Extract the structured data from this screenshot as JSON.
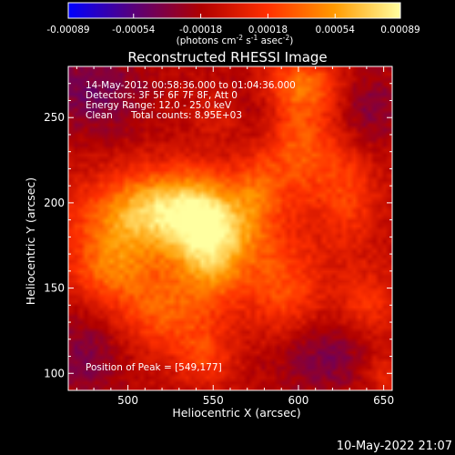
{
  "colorbar": {
    "tick_labels": [
      "-0.00089",
      "-0.00054",
      "-0.00018",
      "0.00018",
      "0.00054",
      "0.00089"
    ],
    "tick_values": [
      -0.00089,
      -0.00054,
      -0.00018,
      0.00018,
      0.00054,
      0.00089
    ],
    "range": [
      -0.00089,
      0.00089
    ],
    "unit_prefix": "(photons cm",
    "unit_exp1": "-2",
    "unit_mid": " s",
    "unit_exp2": "-1",
    "unit_mid2": " asec",
    "unit_exp3": "-2",
    "unit_suffix": ")",
    "colors": [
      "#0000ff",
      "#5a0078",
      "#b00000",
      "#ff3000",
      "#ff9a00",
      "#ffffa0"
    ]
  },
  "title": "Reconstructed RHESSI Image",
  "annotations": {
    "time_range": "14-May-2012 00:58:36.000 to 01:04:36.000",
    "detectors": "Detectors: 3F 5F 6F 7F 8F, Att 0",
    "energy": "Energy Range: 12.0 - 25.0 keV",
    "clean": "Clean",
    "total_counts": "Total counts: 8.95E+03",
    "peak": "Position of Peak = [549,177]"
  },
  "footer_timestamp": "10-May-2022 21:07",
  "chart_data": {
    "type": "heatmap",
    "title": "Reconstructed RHESSI Image",
    "xlabel": "Heliocentric X (arcsec)",
    "ylabel": "Heliocentric Y (arcsec)",
    "xlim": [
      465,
      655
    ],
    "ylim": [
      90,
      280
    ],
    "x_ticks": [
      500,
      550,
      600,
      650
    ],
    "x_tick_labels": [
      "500",
      "550",
      "600",
      "650"
    ],
    "y_ticks": [
      100,
      150,
      200,
      250
    ],
    "y_tick_labels": [
      "100",
      "150",
      "200",
      "250"
    ],
    "value_range": [
      -0.00089,
      0.00089
    ],
    "peak": [
      549,
      177
    ],
    "sources": [
      {
        "x": 549,
        "y": 177,
        "sx": 16,
        "sy": 22,
        "value": 0.00089
      },
      {
        "x": 528,
        "y": 198,
        "sx": 22,
        "sy": 16,
        "value": 0.00055
      },
      {
        "x": 500,
        "y": 190,
        "sx": 24,
        "sy": 18,
        "value": 0.00052
      },
      {
        "x": 490,
        "y": 160,
        "sx": 18,
        "sy": 14,
        "value": 0.0004
      },
      {
        "x": 520,
        "y": 135,
        "sx": 20,
        "sy": 16,
        "value": 0.0004
      },
      {
        "x": 545,
        "y": 110,
        "sx": 12,
        "sy": 12,
        "value": 0.0003
      },
      {
        "x": 575,
        "y": 205,
        "sx": 10,
        "sy": 22,
        "value": 0.00034
      },
      {
        "x": 592,
        "y": 150,
        "sx": 16,
        "sy": 22,
        "value": 0.00038
      },
      {
        "x": 600,
        "y": 235,
        "sx": 16,
        "sy": 28,
        "value": 0.00046
      },
      {
        "x": 602,
        "y": 270,
        "sx": 18,
        "sy": 10,
        "value": 0.00034
      },
      {
        "x": 630,
        "y": 205,
        "sx": 12,
        "sy": 24,
        "value": 0.0003
      },
      {
        "x": 640,
        "y": 140,
        "sx": 12,
        "sy": 14,
        "value": 0.00028
      },
      {
        "x": 650,
        "y": 100,
        "sx": 10,
        "sy": 10,
        "value": 0.00022
      },
      {
        "x": 555,
        "y": 250,
        "sx": 10,
        "sy": 10,
        "value": 0.00018
      }
    ],
    "negative_regions": [
      {
        "x": 480,
        "y": 265,
        "sx": 22,
        "sy": 18,
        "value": -0.0003
      },
      {
        "x": 575,
        "y": 250,
        "sx": 14,
        "sy": 20,
        "value": -0.00022
      },
      {
        "x": 615,
        "y": 110,
        "sx": 22,
        "sy": 16,
        "value": -0.00028
      },
      {
        "x": 475,
        "y": 110,
        "sx": 16,
        "sy": 18,
        "value": -0.00026
      },
      {
        "x": 640,
        "y": 255,
        "sx": 14,
        "sy": 18,
        "value": -0.00026
      }
    ]
  }
}
